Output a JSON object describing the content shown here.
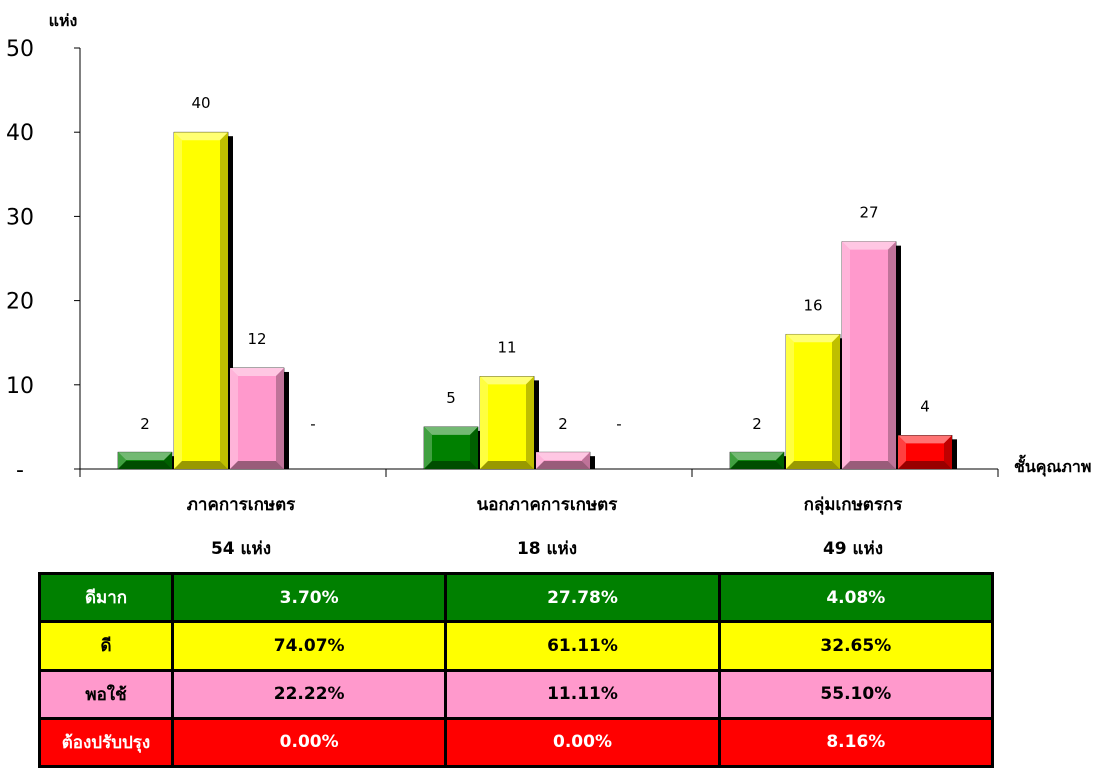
{
  "chart_data": {
    "type": "bar",
    "y_unit_label": "แห่ง",
    "xlabel": "ชั้นคุณภาพ",
    "ylim": [
      0,
      50
    ],
    "y_ticks": [
      "-",
      "10",
      "20",
      "30",
      "40",
      "50"
    ],
    "categories": [
      "ภาคการเกษตร",
      "นอกภาคการเกษตร",
      "กลุ่มเกษตรกร"
    ],
    "category_totals": [
      "54  แห่ง",
      "18  แห่ง",
      "49  แห่ง"
    ],
    "series": [
      {
        "name": "ดีมาก",
        "color": "#008000",
        "values": [
          2,
          5,
          2
        ],
        "labels": [
          "2",
          "5",
          "2"
        ]
      },
      {
        "name": "ดี",
        "color": "#ffff00",
        "values": [
          40,
          11,
          16
        ],
        "labels": [
          "40",
          "11",
          "16"
        ]
      },
      {
        "name": "พอใช้",
        "color": "#ff99cc",
        "values": [
          12,
          2,
          27
        ],
        "labels": [
          "12",
          "2",
          "27"
        ]
      },
      {
        "name": "ต้องปรับปรุง",
        "color": "#ff0000",
        "values": [
          0,
          0,
          4
        ],
        "labels": [
          "-",
          "-",
          "4"
        ]
      }
    ]
  },
  "table": {
    "rows": [
      {
        "label": "ดีมาก",
        "cells": [
          "3.70%",
          "27.78%",
          "4.08%"
        ]
      },
      {
        "label": "ดี",
        "cells": [
          "74.07%",
          "61.11%",
          "32.65%"
        ]
      },
      {
        "label": "พอใช้",
        "cells": [
          "22.22%",
          "11.11%",
          "55.10%"
        ]
      },
      {
        "label": "ต้องปรับปรุง",
        "cells": [
          "0.00%",
          "0.00%",
          "8.16%"
        ]
      }
    ]
  }
}
